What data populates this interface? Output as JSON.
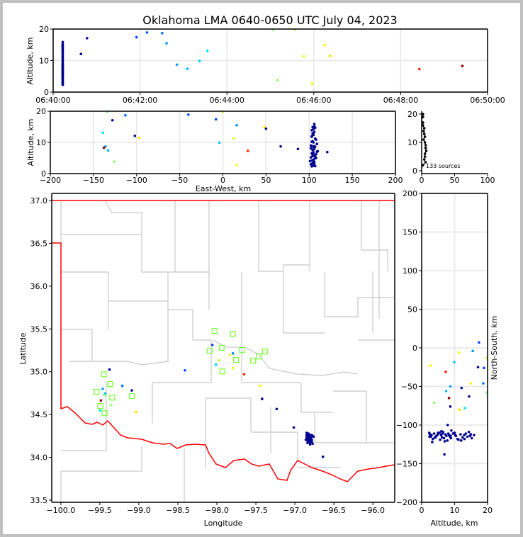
{
  "chart_data": {
    "type": "scatter",
    "title": "Oklahoma LMA 0640-0650 UTC July 04, 2023",
    "source_count_label": "133 sources",
    "station_color": "#7fff3f",
    "border_color": "#ff0000",
    "county_color": "#c8c8c8",
    "ref": {
      "lon0": -97.97,
      "lat0": 35.25,
      "km_per_deg_lon": 91,
      "km_per_deg_lat": 111
    },
    "panels": {
      "time_alt": {
        "ylabel": "Altitude, km",
        "xlim_min": [
          0,
          10
        ],
        "ylim": [
          0,
          20
        ],
        "xticks": [
          {
            "v": 0,
            "label": "06:40:00"
          },
          {
            "v": 2,
            "label": "06:42:00"
          },
          {
            "v": 4,
            "label": "06:44:00"
          },
          {
            "v": 6,
            "label": "06:46:00"
          },
          {
            "v": 8,
            "label": "06:48:00"
          },
          {
            "v": 10,
            "label": "06:50:00"
          }
        ],
        "yticks": [
          {
            "v": 0,
            "label": "0"
          },
          {
            "v": 10,
            "label": "10"
          },
          {
            "v": 20,
            "label": "20"
          }
        ]
      },
      "ew_alt": {
        "xlabel": "East-West, km",
        "ylabel": "Altitude, km",
        "xlim": [
          -200,
          200
        ],
        "ylim": [
          0,
          20
        ],
        "xticks": [
          {
            "v": -200,
            "label": "−200"
          },
          {
            "v": -150,
            "label": "−150"
          },
          {
            "v": -100,
            "label": "−100"
          },
          {
            "v": -50,
            "label": "−50"
          },
          {
            "v": 0,
            "label": "0"
          },
          {
            "v": 50,
            "label": "50"
          },
          {
            "v": 100,
            "label": "100"
          },
          {
            "v": 150,
            "label": "150"
          },
          {
            "v": 200,
            "label": "200"
          }
        ],
        "yticks": [
          {
            "v": 0,
            "label": "0"
          },
          {
            "v": 10,
            "label": "10"
          },
          {
            "v": 20,
            "label": "20"
          }
        ]
      },
      "hist": {
        "xlim": [
          0,
          100
        ],
        "ylim": [
          -1,
          21
        ],
        "xticks": [
          {
            "v": 0,
            "label": "0"
          },
          {
            "v": 50,
            "label": "50"
          },
          {
            "v": 100,
            "label": "100"
          }
        ],
        "yticks": [
          {
            "v": 0,
            "label": "0"
          },
          {
            "v": 10,
            "label": "10"
          },
          {
            "v": 20,
            "label": "20"
          }
        ]
      },
      "map": {
        "xlabel": "Longitude",
        "ylabel": "Latitude",
        "xlim": [
          -100.117,
          -95.72
        ],
        "ylim": [
          33.475,
          37.083
        ],
        "xticks": [
          {
            "v": -100,
            "label": "−100.0"
          },
          {
            "v": -99.5,
            "label": "−99.5"
          },
          {
            "v": -99,
            "label": "−99.0"
          },
          {
            "v": -98.5,
            "label": "−98.5"
          },
          {
            "v": -98,
            "label": "−98.0"
          },
          {
            "v": -97.5,
            "label": "−97.5"
          },
          {
            "v": -97,
            "label": "−97.0"
          },
          {
            "v": -96.5,
            "label": "−96.5"
          },
          {
            "v": -96,
            "label": "−96.0"
          }
        ],
        "yticks": [
          {
            "v": 33.5,
            "label": "33.5"
          },
          {
            "v": 34,
            "label": "34.0"
          },
          {
            "v": 34.5,
            "label": "34.5"
          },
          {
            "v": 35,
            "label": "35.0"
          },
          {
            "v": 35.5,
            "label": "35.5"
          },
          {
            "v": 36,
            "label": "36.0"
          },
          {
            "v": 36.5,
            "label": "36.5"
          },
          {
            "v": 37,
            "label": "37.0"
          }
        ]
      },
      "alt_ns": {
        "xlabel": "Altitude, km",
        "ylabel": "North-South, km",
        "xlim": [
          0,
          20
        ],
        "ylim": [
          -200,
          200
        ],
        "xticks": [
          {
            "v": 0,
            "label": "0"
          },
          {
            "v": 10,
            "label": "10"
          },
          {
            "v": 20,
            "label": "20"
          }
        ],
        "yticks": [
          {
            "v": -200,
            "label": "−200"
          },
          {
            "v": -150,
            "label": "−150"
          },
          {
            "v": -100,
            "label": "−100"
          },
          {
            "v": -50,
            "label": "−50"
          },
          {
            "v": 0,
            "label": "0"
          },
          {
            "v": 50,
            "label": "50"
          },
          {
            "v": 100,
            "label": "100"
          },
          {
            "v": 150,
            "label": "150"
          },
          {
            "v": 200,
            "label": "200"
          }
        ]
      }
    },
    "sources_sparse": [
      {
        "t": 0.64,
        "alt": 12.1,
        "ew": -102,
        "ns": -52,
        "color": "#00008f"
      },
      {
        "t": 0.78,
        "alt": 17.1,
        "ew": -128,
        "ns": -25,
        "color": "#00008f"
      },
      {
        "t": 1.92,
        "alt": 17.4,
        "ew": -8,
        "ns": 7,
        "color": "#0040ff"
      },
      {
        "t": 2.16,
        "alt": 18.9,
        "ew": -40,
        "ns": -26,
        "color": "#0050ff"
      },
      {
        "t": 2.51,
        "alt": 18.7,
        "ew": -113,
        "ns": -46,
        "color": "#0070ff"
      },
      {
        "t": 2.61,
        "alt": 15.5,
        "ew": 16,
        "ns": -4,
        "color": "#0090ff"
      },
      {
        "t": 2.85,
        "alt": 8.7,
        "ew": -136,
        "ns": -50,
        "color": "#00a0ff"
      },
      {
        "t": 3.09,
        "alt": 7.4,
        "ew": -133,
        "ns": -56,
        "color": "#00b8ff"
      },
      {
        "t": 3.37,
        "alt": 9.9,
        "ew": -4,
        "ns": -18.5,
        "color": "#00c8ff"
      },
      {
        "t": 3.55,
        "alt": 13.1,
        "ew": -139,
        "ns": -78,
        "color": "#00e8ff"
      },
      {
        "t": 5.06,
        "alt": 19.8,
        "ew": -134,
        "ns": -58,
        "color": "#7fff7f"
      },
      {
        "t": 5.17,
        "alt": 3.8,
        "ew": -126,
        "ns": -71,
        "color": "#8fff6f"
      },
      {
        "t": 5.57,
        "alt": 19.8,
        "ew": 0,
        "ns": -13,
        "color": "#bfff3f"
      },
      {
        "t": 5.77,
        "alt": 11.3,
        "ew": 12.5,
        "ns": -6,
        "color": "#dfff1f"
      },
      {
        "t": 5.96,
        "alt": 2.7,
        "ew": 16,
        "ns": -23,
        "color": "#efff0f"
      },
      {
        "t": 6.25,
        "alt": 14.9,
        "ew": 48,
        "ns": -46,
        "color": "#ffef00"
      },
      {
        "t": 6.37,
        "alt": 11.5,
        "ew": -97,
        "ns": -80,
        "color": "#ffdf00"
      },
      {
        "t": 8.43,
        "alt": 7.3,
        "ew": 29,
        "ns": -31,
        "color": "#ff2000"
      },
      {
        "t": 9.42,
        "alt": 8.3,
        "ew": -138,
        "ns": -65,
        "color": "#8f0000"
      },
      {
        "t": 0.22,
        "alt": 14.4,
        "ew": 50,
        "ns": -63,
        "color": "#00008f"
      },
      {
        "t": 0.22,
        "alt": 8.7,
        "ew": 67,
        "ns": -76,
        "color": "#00008f"
      },
      {
        "t": 0.22,
        "alt": 7.9,
        "ew": 87,
        "ns": -100,
        "color": "#00008f"
      },
      {
        "t": 0.22,
        "alt": 6.9,
        "ew": 121,
        "ns": -138,
        "color": "#00008f"
      }
    ],
    "cluster": {
      "t": 0.22,
      "color": "#00008f",
      "points": [
        [
          103,
          -110,
          2.3
        ],
        [
          105,
          -112,
          2.5
        ],
        [
          107,
          -115,
          2.4
        ],
        [
          102,
          -113,
          3.0
        ],
        [
          104,
          -118,
          3.4
        ],
        [
          106,
          -111,
          3.8
        ],
        [
          103,
          -116,
          4.2
        ],
        [
          105,
          -114,
          4.5
        ],
        [
          107,
          -112,
          4.9
        ],
        [
          102,
          -110,
          5.2
        ],
        [
          104,
          -119,
          5.6
        ],
        [
          106,
          -113,
          5.9
        ],
        [
          108,
          -116,
          6.2
        ],
        [
          103,
          -109,
          6.5
        ],
        [
          105,
          -117,
          6.8
        ],
        [
          110,
          -112,
          7.2
        ],
        [
          104,
          -114,
          7.5
        ],
        [
          106,
          -120,
          7.8
        ],
        [
          102,
          -111,
          8.1
        ],
        [
          105,
          -113,
          8.3
        ],
        [
          107,
          -115,
          8.6
        ],
        [
          103,
          -117,
          8.9
        ],
        [
          109,
          -111,
          9.5
        ],
        [
          105,
          -110,
          10.0
        ],
        [
          104,
          -114,
          10.4
        ],
        [
          108,
          -118,
          10.9
        ],
        [
          103,
          -112,
          11.8
        ],
        [
          105,
          -116,
          12.4
        ],
        [
          104,
          -113,
          12.9
        ],
        [
          106,
          -111,
          13.4
        ],
        [
          103,
          -115,
          13.9
        ],
        [
          105,
          -109,
          14.3
        ],
        [
          107,
          -114,
          14.7
        ],
        [
          104,
          -112,
          14.9
        ],
        [
          106,
          -117,
          15.2
        ],
        [
          106,
          -113,
          15.9
        ],
        [
          101,
          -116,
          4.0
        ],
        [
          108,
          -110,
          5.0
        ],
        [
          109,
          -121,
          7.0
        ],
        [
          102,
          -107,
          9.0
        ],
        [
          106,
          -122,
          3.2
        ],
        [
          104,
          -108,
          6.0
        ],
        [
          107,
          -119,
          11.2
        ],
        [
          103,
          -120,
          12.0
        ],
        [
          105,
          -115,
          2.8
        ],
        [
          104,
          -111,
          6.3
        ],
        [
          106,
          -114,
          8.8
        ],
        [
          103,
          -113,
          10.2
        ],
        [
          105,
          -118,
          13.0
        ],
        [
          107,
          -110,
          5.4
        ]
      ]
    },
    "stations": [
      [
        -98.029,
        35.476
      ],
      [
        -97.795,
        35.443
      ],
      [
        -98.092,
        35.244
      ],
      [
        -97.939,
        35.28
      ],
      [
        -97.678,
        35.253
      ],
      [
        -97.382,
        35.236
      ],
      [
        -97.463,
        35.178
      ],
      [
        -97.753,
        35.137
      ],
      [
        -97.535,
        35.129
      ],
      [
        -97.93,
        35.004
      ],
      [
        -99.449,
        34.971
      ],
      [
        -99.368,
        34.856
      ],
      [
        -99.542,
        34.765
      ],
      [
        -99.341,
        34.698
      ],
      [
        -99.09,
        34.715
      ],
      [
        -99.494,
        34.599
      ],
      [
        -99.44,
        34.516
      ]
    ]
  }
}
